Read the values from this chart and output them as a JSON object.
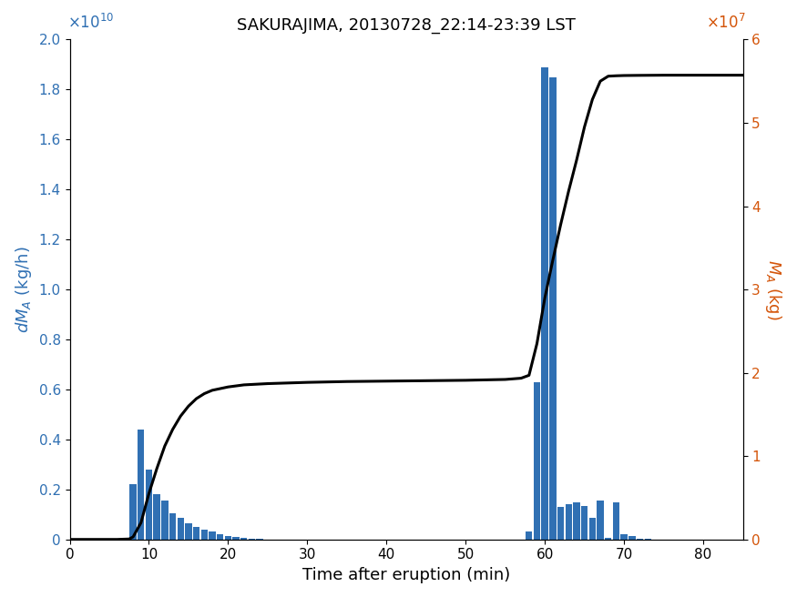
{
  "title": "SAKURAJIMA, 20130728_22:14-23:39 LST",
  "xlabel": "Time after eruption (min)",
  "ylabel_left": "dM_A (kg/h)",
  "ylabel_right": "M_A (kg)",
  "bar_color": "#3070b3",
  "line_color": "#000000",
  "xlim": [
    0,
    85
  ],
  "ylim_left": [
    0,
    20000000000.0
  ],
  "ylim_right": [
    0,
    60000000.0
  ],
  "bar_centers": [
    8,
    9,
    10,
    11,
    12,
    13,
    14,
    15,
    16,
    17,
    18,
    19,
    20,
    21,
    22,
    23,
    24,
    25,
    26,
    27,
    28,
    29,
    30,
    58,
    59,
    60,
    61,
    62,
    63,
    64,
    65,
    66,
    67,
    68,
    69,
    70,
    71,
    72,
    73,
    74,
    75
  ],
  "bar_heights": [
    2200000000.0,
    4400000000.0,
    2800000000.0,
    1800000000.0,
    1550000000.0,
    1050000000.0,
    850000000.0,
    650000000.0,
    500000000.0,
    380000000.0,
    320000000.0,
    200000000.0,
    150000000.0,
    90000000.0,
    50000000.0,
    25000000.0,
    15000000.0,
    8000000.0,
    4000000.0,
    2000000.0,
    1000000.0,
    500000.0,
    200000.0,
    300000000.0,
    6300000000.0,
    18900000000.0,
    18500000000.0,
    1300000000.0,
    1400000000.0,
    1500000000.0,
    1350000000.0,
    850000000.0,
    1550000000.0,
    50000000.0,
    1500000000.0,
    200000000.0,
    150000000.0,
    30000000.0,
    10000000.0,
    5000000.0,
    2000000.0
  ],
  "cumline_x": [
    0.0,
    6.0,
    7.5,
    8.0,
    9.0,
    10.0,
    11.0,
    12.0,
    13.0,
    14.0,
    15.0,
    16.0,
    17.0,
    18.0,
    19.0,
    20.0,
    22.0,
    25.0,
    30.0,
    35.0,
    40.0,
    45.0,
    50.0,
    55.0,
    57.0,
    58.0,
    59.0,
    60.0,
    61.0,
    62.0,
    63.0,
    64.0,
    65.0,
    66.0,
    67.0,
    68.0,
    69.0,
    70.0,
    72.0,
    75.0,
    80.0,
    85.0
  ],
  "cumline_y": [
    0,
    0,
    50000.0,
    300000.0,
    2000000.0,
    5500000.0,
    8500000.0,
    11200000.0,
    13200000.0,
    14800000.0,
    16000000.0,
    16900000.0,
    17500000.0,
    17900000.0,
    18100000.0,
    18300000.0,
    18550000.0,
    18700000.0,
    18850000.0,
    18950000.0,
    19000000.0,
    19050000.0,
    19100000.0,
    19200000.0,
    19350000.0,
    19700000.0,
    23500000.0,
    29000000.0,
    33500000.0,
    37800000.0,
    41800000.0,
    45500000.0,
    49500000.0,
    52800000.0,
    55000000.0,
    55600000.0,
    55650000.0,
    55680000.0,
    55700000.0,
    55720000.0,
    55720000.0,
    55720000.0
  ],
  "xticks": [
    0,
    10,
    20,
    30,
    40,
    50,
    60,
    70,
    80
  ],
  "yticks_left_step": 2000000000.0,
  "yticks_right_step": 10000000.0,
  "title_fontsize": 13,
  "axis_fontsize": 13,
  "tick_fontsize": 11,
  "exp_fontsize": 12,
  "bar_width": 0.85,
  "line_width": 2.2
}
